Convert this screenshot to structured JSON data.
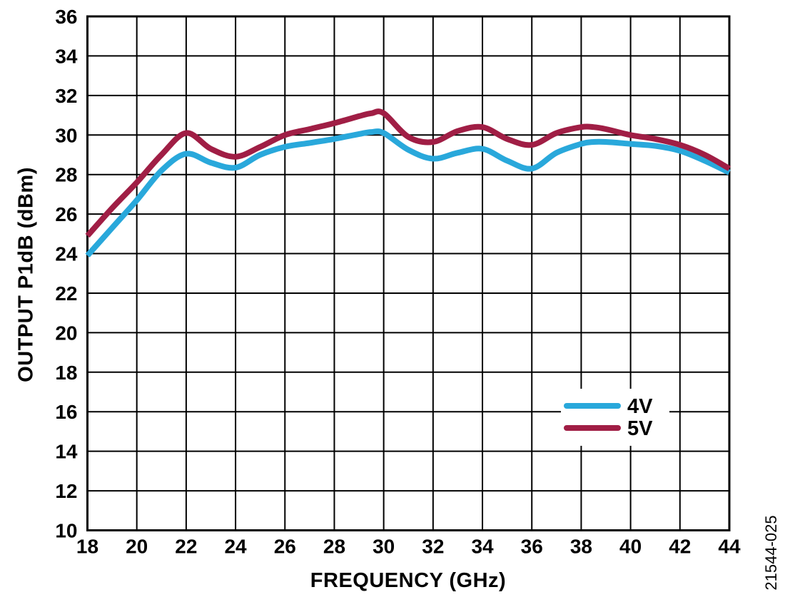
{
  "figure": {
    "watermark": "21544-025"
  },
  "chart_data": {
    "type": "line",
    "title": "",
    "xlabel": "FREQUENCY (GHz)",
    "ylabel": "OUTPUT P1dB (dBm)",
    "xlim": [
      18,
      44
    ],
    "ylim": [
      10,
      36
    ],
    "xticks": [
      18,
      20,
      22,
      24,
      26,
      28,
      30,
      32,
      34,
      36,
      38,
      40,
      42,
      44
    ],
    "yticks": [
      10,
      12,
      14,
      16,
      18,
      20,
      22,
      24,
      26,
      28,
      30,
      32,
      34,
      36
    ],
    "grid": true,
    "grid_color": "#000000",
    "legend_position": "inside-right-middle",
    "x": [
      18,
      19,
      20,
      21,
      22,
      23,
      24,
      25,
      26,
      27,
      28,
      29,
      29.5,
      30,
      31,
      32,
      33,
      34,
      35,
      36,
      37,
      38,
      38.5,
      39,
      40,
      41,
      42,
      43,
      44
    ],
    "series": [
      {
        "name": "4V",
        "color": "#29A8DB",
        "values": [
          23.9,
          25.3,
          26.7,
          28.2,
          29.05,
          28.6,
          28.35,
          29.0,
          29.4,
          29.6,
          29.8,
          30.05,
          30.15,
          30.1,
          29.25,
          28.8,
          29.1,
          29.3,
          28.7,
          28.3,
          29.1,
          29.55,
          29.65,
          29.65,
          29.55,
          29.45,
          29.2,
          28.7,
          28.1
        ]
      },
      {
        "name": "5V",
        "color": "#A01E45",
        "values": [
          24.9,
          26.3,
          27.6,
          29.0,
          30.1,
          29.3,
          28.9,
          29.4,
          30.0,
          30.3,
          30.6,
          30.95,
          31.1,
          31.1,
          29.9,
          29.65,
          30.2,
          30.4,
          29.8,
          29.5,
          30.1,
          30.4,
          30.4,
          30.3,
          30.0,
          29.8,
          29.5,
          29.0,
          28.3
        ]
      }
    ]
  }
}
